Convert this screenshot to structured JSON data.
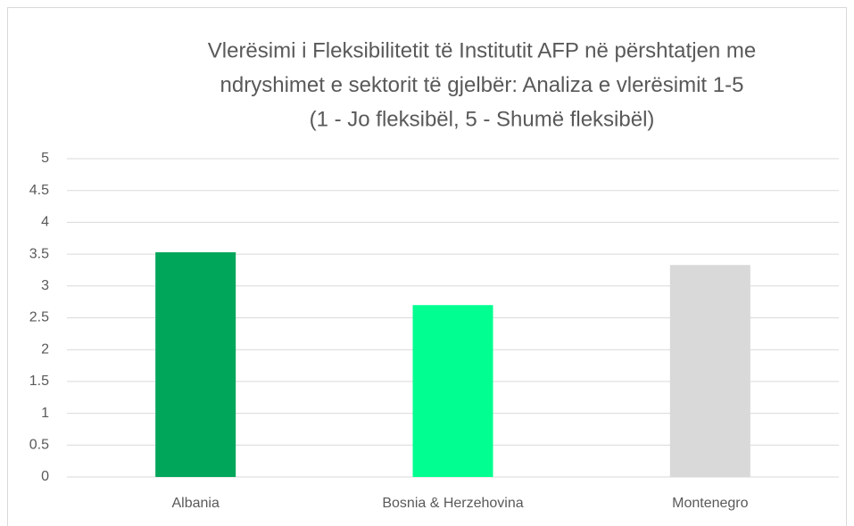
{
  "chart_data": {
    "type": "bar",
    "title": [
      "Vlerësimi i Fleksibilitetit të Institutit AFP në përshtatjen me",
      "ndryshimet e sektorit të gjelbër: Analiza e vlerësimit 1-5",
      "(1 - Jo fleksibël, 5 - Shumë fleksibël)"
    ],
    "categories": [
      "Albania",
      "Bosnia & Herzehovina",
      "Montenegro"
    ],
    "values": [
      3.53,
      2.7,
      3.33
    ],
    "colors": [
      "#00a65a",
      "#00ff90",
      "#d9d9d9"
    ],
    "ylim": [
      0,
      5
    ],
    "yticks": [
      0,
      0.5,
      1,
      1.5,
      2,
      2.5,
      3,
      3.5,
      4,
      4.5,
      5
    ],
    "grid": true
  }
}
